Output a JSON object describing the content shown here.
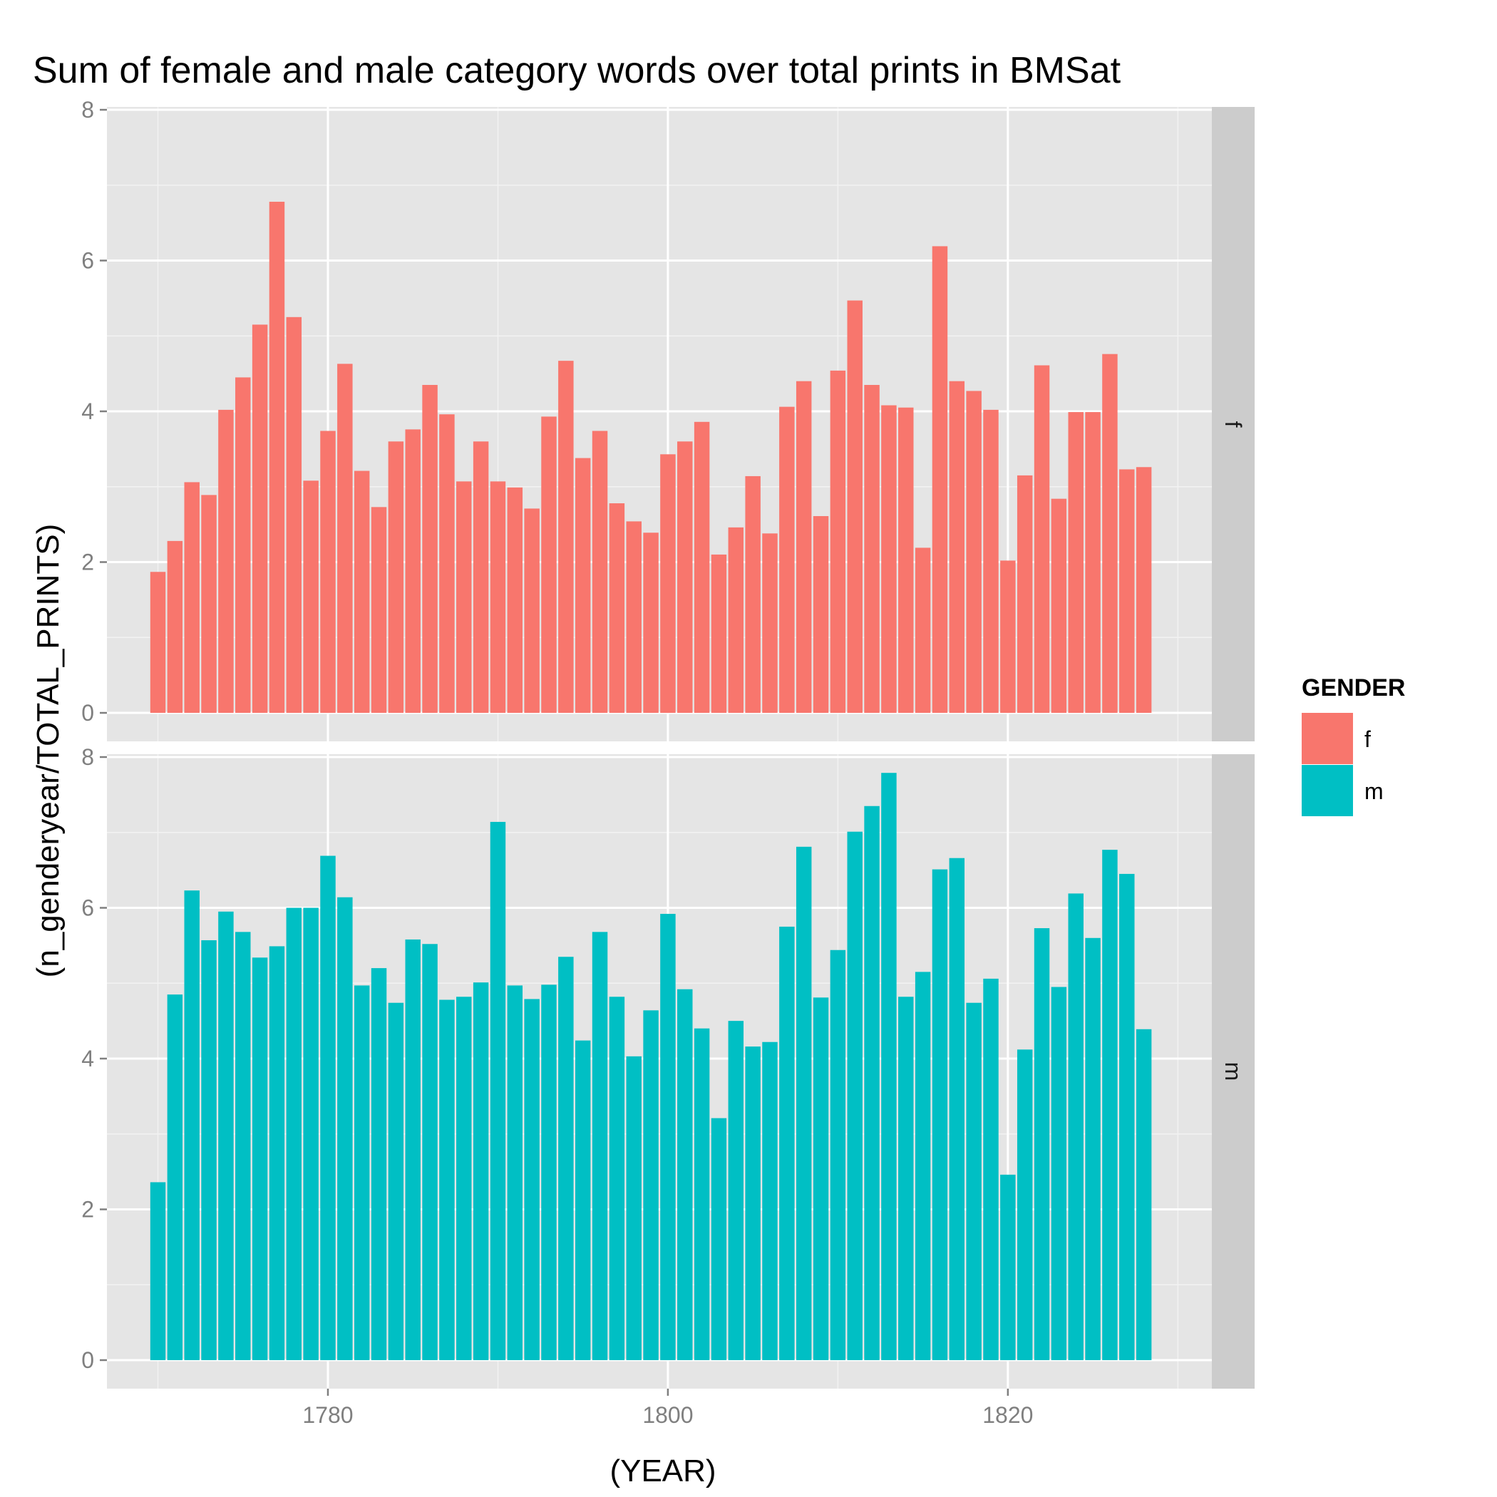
{
  "chart_data": {
    "type": "bar",
    "title": "Sum of female and male category words over total prints in BMSat",
    "xlabel": "(YEAR)",
    "ylabel": "(n_genderyear/TOTAL_PRINTS)",
    "xlim": [
      1767,
      1832
    ],
    "ylim": [
      0,
      8
    ],
    "x_ticks": [
      1780,
      1800,
      1820
    ],
    "y_ticks": [
      0,
      2,
      4,
      6,
      8
    ],
    "grid": true,
    "legend": {
      "title": "GENDER",
      "placement": "right",
      "entries": [
        "f",
        "m"
      ]
    },
    "facets": [
      "f",
      "m"
    ],
    "colors": {
      "f": "#F8766D",
      "m": "#00BFC4"
    },
    "x": [
      1770,
      1771,
      1772,
      1773,
      1774,
      1775,
      1776,
      1777,
      1778,
      1779,
      1780,
      1781,
      1782,
      1783,
      1784,
      1785,
      1786,
      1787,
      1788,
      1789,
      1790,
      1791,
      1792,
      1793,
      1794,
      1795,
      1796,
      1797,
      1798,
      1799,
      1800,
      1801,
      1802,
      1803,
      1804,
      1805,
      1806,
      1807,
      1808,
      1809,
      1810,
      1811,
      1812,
      1813,
      1814,
      1815,
      1816,
      1817,
      1818,
      1819,
      1820,
      1821,
      1822,
      1823,
      1824,
      1825,
      1826,
      1827,
      1828,
      1829
    ],
    "series": [
      {
        "name": "f",
        "values": [
          1.87,
          2.28,
          3.06,
          2.89,
          4.02,
          4.45,
          5.15,
          6.78,
          5.25,
          3.08,
          3.74,
          4.63,
          3.21,
          2.73,
          3.6,
          3.76,
          4.35,
          3.96,
          3.07,
          3.6,
          3.07,
          2.99,
          2.71,
          3.93,
          4.67,
          3.38,
          3.74,
          2.78,
          2.54,
          2.39,
          3.43,
          3.6,
          3.86,
          2.1,
          2.46,
          3.14,
          2.38,
          4.06,
          4.4,
          2.61,
          4.54,
          5.47,
          4.35,
          4.08,
          4.05,
          2.19,
          6.19,
          4.4,
          4.27,
          4.02,
          2.02,
          3.15,
          4.61,
          2.84,
          3.99,
          3.99,
          4.76,
          3.23,
          3.26,
          0
        ]
      },
      {
        "name": "m",
        "values": [
          2.36,
          4.85,
          6.23,
          5.57,
          5.95,
          5.68,
          5.34,
          5.49,
          6.0,
          6.0,
          6.69,
          6.14,
          4.97,
          5.2,
          4.74,
          5.58,
          5.52,
          4.78,
          4.82,
          5.01,
          7.14,
          4.97,
          4.79,
          4.98,
          5.35,
          4.24,
          5.68,
          4.82,
          4.03,
          4.64,
          5.92,
          4.92,
          4.4,
          3.21,
          4.5,
          4.16,
          4.22,
          5.75,
          6.81,
          4.81,
          5.44,
          7.01,
          7.35,
          7.79,
          4.82,
          5.15,
          6.51,
          6.66,
          4.74,
          5.06,
          2.46,
          4.12,
          5.73,
          4.95,
          6.19,
          5.6,
          6.77,
          6.45,
          4.39,
          0
        ]
      }
    ]
  }
}
